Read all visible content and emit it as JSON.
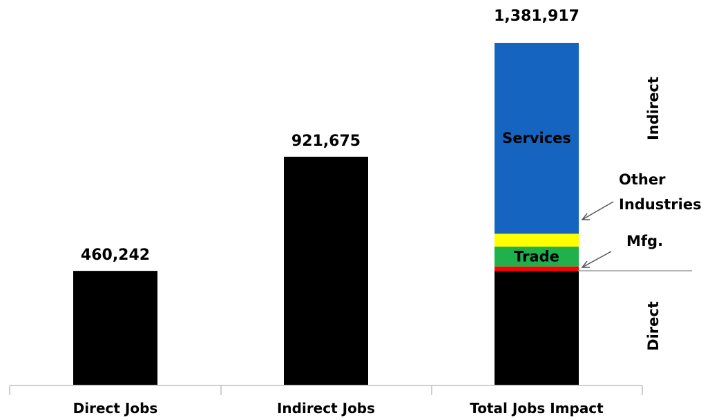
{
  "chart_data": {
    "type": "bar",
    "categories": [
      "Direct Jobs",
      "Indirect Jobs",
      "Total Jobs Impact"
    ],
    "values": [
      460242,
      921675,
      1381917
    ],
    "value_labels": [
      "460,242",
      "921,675",
      "1,381,917"
    ],
    "stack": {
      "category": "Total Jobs Impact",
      "segments": [
        {
          "key": "direct",
          "value": 460242,
          "color": "#000000",
          "label": ""
        },
        {
          "key": "mfg",
          "value": 18000,
          "color": "#ff0000",
          "label": ""
        },
        {
          "key": "trade",
          "value": 80000,
          "color": "#21b14c",
          "label": "Trade"
        },
        {
          "key": "other",
          "value": 52000,
          "color": "#ffff00",
          "label": ""
        },
        {
          "key": "services",
          "value": 771675,
          "color": "#1565c0",
          "label": "Services"
        }
      ]
    },
    "annotations": {
      "other_line1": "Other",
      "other_line2": "Industries",
      "mfg": "Mfg.",
      "indirect": "Indirect",
      "direct": "Direct"
    },
    "ylim": [
      0,
      1381917
    ],
    "grid": false,
    "bar_color": "#000000",
    "axis_color": "#bfbfbf"
  }
}
